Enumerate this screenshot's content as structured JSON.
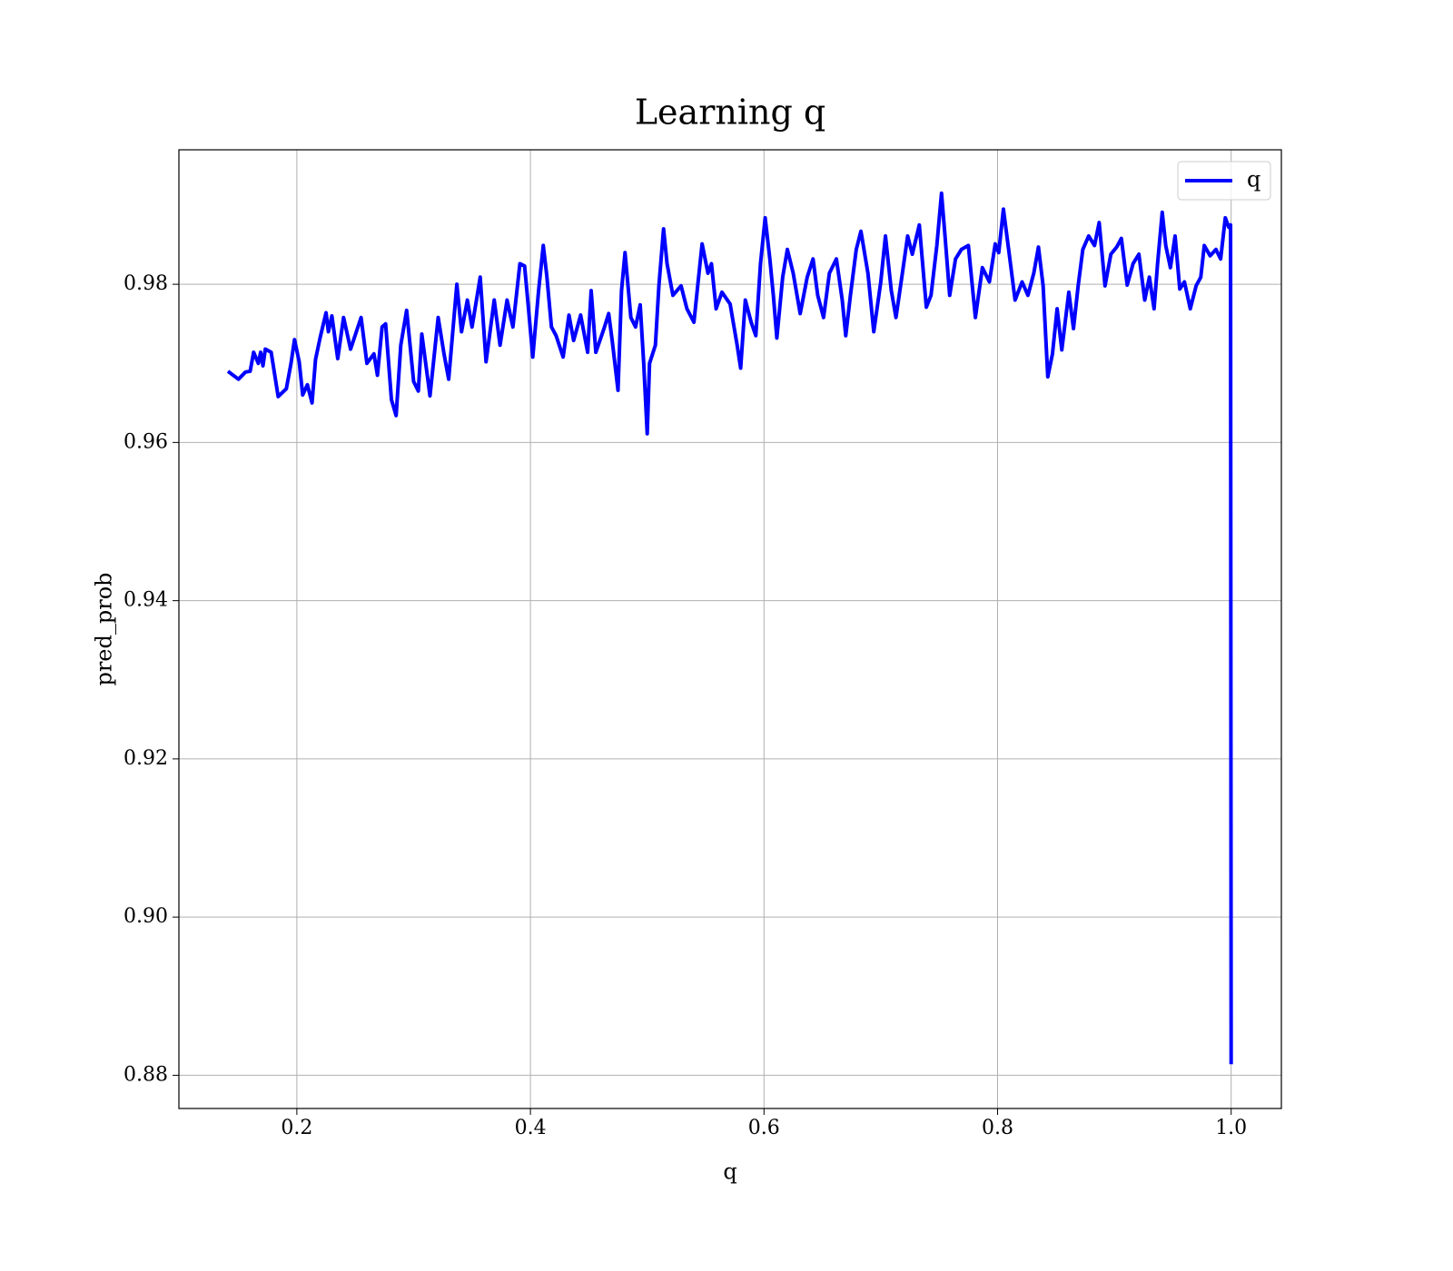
{
  "chart_data": {
    "type": "line",
    "title": "Learning q",
    "xlabel": "q",
    "ylabel": "pred_prob",
    "x": [
      0.141,
      0.15,
      0.156,
      0.16,
      0.163,
      0.167,
      0.169,
      0.171,
      0.173,
      0.178,
      0.184,
      0.191,
      0.195,
      0.198,
      0.202,
      0.205,
      0.209,
      0.213,
      0.216,
      0.22,
      0.225,
      0.227,
      0.23,
      0.235,
      0.24,
      0.246,
      0.255,
      0.26,
      0.266,
      0.269,
      0.273,
      0.276,
      0.281,
      0.285,
      0.289,
      0.294,
      0.3,
      0.304,
      0.307,
      0.314,
      0.321,
      0.326,
      0.33,
      0.337,
      0.341,
      0.346,
      0.35,
      0.357,
      0.362,
      0.369,
      0.374,
      0.38,
      0.385,
      0.391,
      0.395,
      0.398,
      0.402,
      0.407,
      0.411,
      0.414,
      0.418,
      0.422,
      0.428,
      0.433,
      0.437,
      0.443,
      0.449,
      0.452,
      0.456,
      0.463,
      0.467,
      0.47,
      0.475,
      0.478,
      0.481,
      0.486,
      0.49,
      0.494,
      0.497,
      0.5,
      0.502,
      0.507,
      0.51,
      0.514,
      0.517,
      0.522,
      0.529,
      0.534,
      0.54,
      0.544,
      0.547,
      0.552,
      0.555,
      0.559,
      0.564,
      0.571,
      0.577,
      0.58,
      0.584,
      0.589,
      0.593,
      0.597,
      0.601,
      0.605,
      0.608,
      0.611,
      0.616,
      0.62,
      0.625,
      0.631,
      0.637,
      0.642,
      0.646,
      0.651,
      0.656,
      0.662,
      0.667,
      0.67,
      0.674,
      0.679,
      0.683,
      0.689,
      0.694,
      0.7,
      0.704,
      0.709,
      0.713,
      0.718,
      0.723,
      0.727,
      0.733,
      0.739,
      0.743,
      0.748,
      0.752,
      0.755,
      0.759,
      0.764,
      0.769,
      0.775,
      0.781,
      0.787,
      0.793,
      0.798,
      0.801,
      0.805,
      0.81,
      0.815,
      0.821,
      0.826,
      0.831,
      0.835,
      0.839,
      0.843,
      0.847,
      0.851,
      0.855,
      0.861,
      0.865,
      0.869,
      0.873,
      0.878,
      0.883,
      0.887,
      0.892,
      0.897,
      0.902,
      0.906,
      0.911,
      0.916,
      0.921,
      0.926,
      0.93,
      0.934,
      0.937,
      0.941,
      0.944,
      0.948,
      0.952,
      0.956,
      0.96,
      0.965,
      0.97,
      0.974,
      0.977,
      0.982,
      0.987,
      0.991,
      0.995,
      0.998,
      0.9995,
      1.0
    ],
    "series": [
      {
        "name": "q",
        "color": "#0000ff",
        "values": [
          0.969,
          0.968,
          0.9689,
          0.969,
          0.9714,
          0.97,
          0.9714,
          0.9697,
          0.9718,
          0.9714,
          0.9658,
          0.9668,
          0.97,
          0.973,
          0.9702,
          0.966,
          0.9673,
          0.965,
          0.9705,
          0.9733,
          0.9764,
          0.974,
          0.976,
          0.9706,
          0.9758,
          0.9718,
          0.9758,
          0.97,
          0.9712,
          0.9685,
          0.9746,
          0.975,
          0.9654,
          0.9634,
          0.9723,
          0.9767,
          0.9677,
          0.9665,
          0.9737,
          0.9659,
          0.9758,
          0.9712,
          0.968,
          0.98,
          0.974,
          0.978,
          0.9746,
          0.9809,
          0.9702,
          0.978,
          0.9723,
          0.978,
          0.9746,
          0.9826,
          0.9823,
          0.9775,
          0.9708,
          0.9792,
          0.9849,
          0.9811,
          0.9746,
          0.9735,
          0.9708,
          0.9761,
          0.9729,
          0.9761,
          0.9714,
          0.9792,
          0.9714,
          0.9744,
          0.9763,
          0.9729,
          0.9666,
          0.9792,
          0.984,
          0.9758,
          0.9746,
          0.9774,
          0.97,
          0.9611,
          0.97,
          0.9723,
          0.9798,
          0.987,
          0.9826,
          0.9786,
          0.9798,
          0.9769,
          0.9752,
          0.9809,
          0.9851,
          0.9814,
          0.9826,
          0.9769,
          0.979,
          0.9775,
          0.9723,
          0.9694,
          0.978,
          0.9752,
          0.9735,
          0.9826,
          0.9884,
          0.9832,
          0.9786,
          0.9732,
          0.9809,
          0.9844,
          0.9814,
          0.9763,
          0.9809,
          0.9832,
          0.9786,
          0.9758,
          0.9814,
          0.9832,
          0.978,
          0.9735,
          0.9786,
          0.9844,
          0.9867,
          0.9814,
          0.974,
          0.9803,
          0.9861,
          0.9792,
          0.9758,
          0.9809,
          0.9861,
          0.9838,
          0.9875,
          0.9771,
          0.9786,
          0.9849,
          0.9915,
          0.9861,
          0.9786,
          0.9832,
          0.9844,
          0.9849,
          0.9758,
          0.9821,
          0.9803,
          0.9851,
          0.984,
          0.9895,
          0.9838,
          0.978,
          0.9803,
          0.9786,
          0.9814,
          0.9847,
          0.9798,
          0.9683,
          0.9712,
          0.9769,
          0.9717,
          0.979,
          0.9744,
          0.9798,
          0.9844,
          0.9861,
          0.9849,
          0.9878,
          0.9798,
          0.9838,
          0.9847,
          0.9858,
          0.9799,
          0.9826,
          0.9838,
          0.978,
          0.9809,
          0.9769,
          0.9826,
          0.9891,
          0.9849,
          0.9821,
          0.9861,
          0.9794,
          0.9803,
          0.9769,
          0.9798,
          0.9809,
          0.9849,
          0.9836,
          0.9844,
          0.9832,
          0.9884,
          0.9872,
          0.9875,
          0.8814
        ]
      }
    ],
    "xlim": [
      0.099,
      1.043
    ],
    "ylim": [
      0.8758,
      0.997
    ],
    "xticks": [
      0.2,
      0.4,
      0.6,
      0.8,
      {
        "value": 1.0,
        "label": "1.0"
      }
    ],
    "yticks": [
      0.88,
      {
        "value": 0.9,
        "label": "0.90"
      },
      0.92,
      0.94,
      0.96,
      0.98
    ],
    "grid": true,
    "legend": "upper right"
  }
}
